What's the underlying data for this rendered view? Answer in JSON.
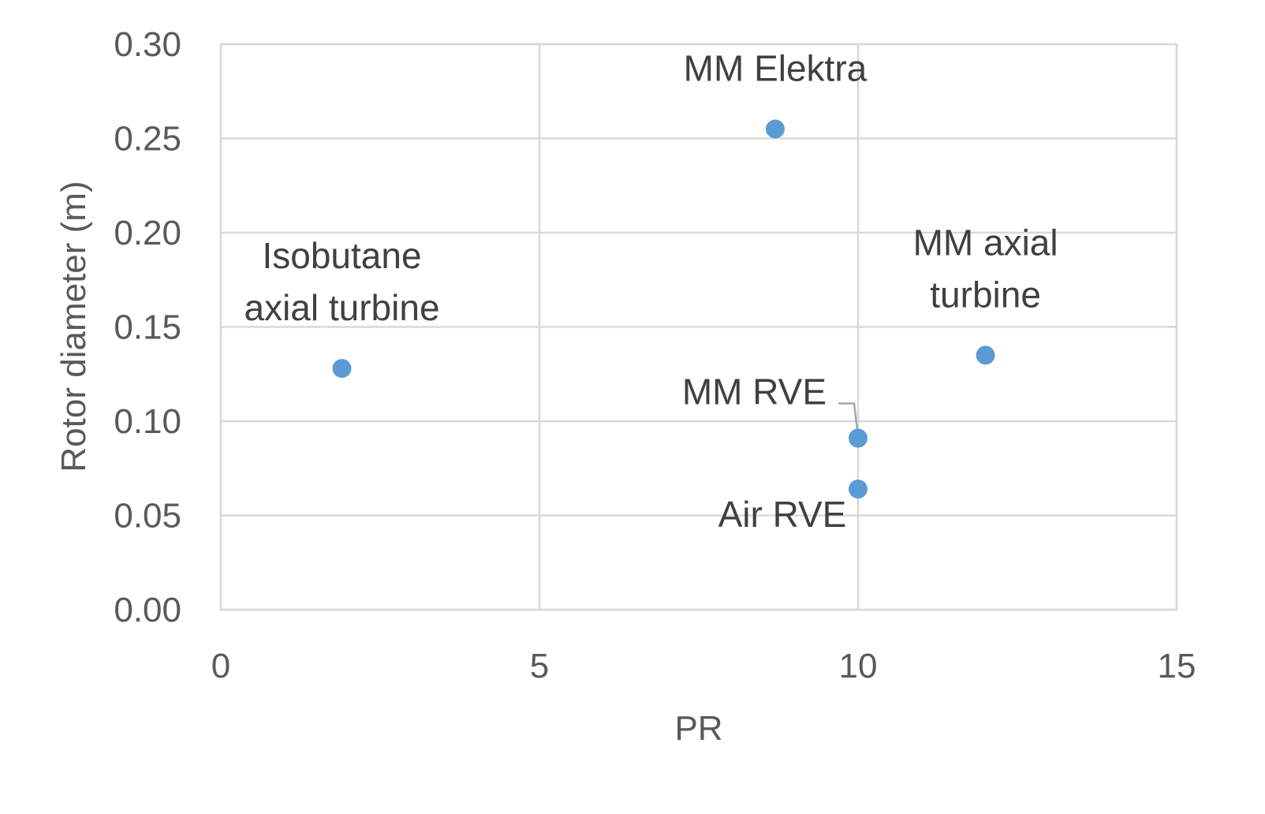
{
  "chart_data": {
    "type": "scatter",
    "xlabel": "PR",
    "ylabel": "Rotor diameter (m)",
    "xlim": [
      0,
      15
    ],
    "ylim": [
      0,
      0.3
    ],
    "xticks": [
      "0",
      "5",
      "10",
      "15"
    ],
    "yticks": [
      "0.00",
      "0.05",
      "0.10",
      "0.15",
      "0.20",
      "0.25",
      "0.30"
    ],
    "grid": true,
    "color": "#5b9bd5",
    "points": [
      {
        "label_lines": [
          "Isobutane",
          "axial turbine"
        ],
        "x": 1.9,
        "y": 0.128
      },
      {
        "label_lines": [
          "MM Elektra"
        ],
        "x": 8.7,
        "y": 0.255
      },
      {
        "label_lines": [
          "MM axial",
          "turbine"
        ],
        "x": 12.0,
        "y": 0.135
      },
      {
        "label_lines": [
          "MM RVE"
        ],
        "x": 10.0,
        "y": 0.091
      },
      {
        "label_lines": [
          "Air RVE"
        ],
        "x": 10.0,
        "y": 0.064
      }
    ]
  }
}
